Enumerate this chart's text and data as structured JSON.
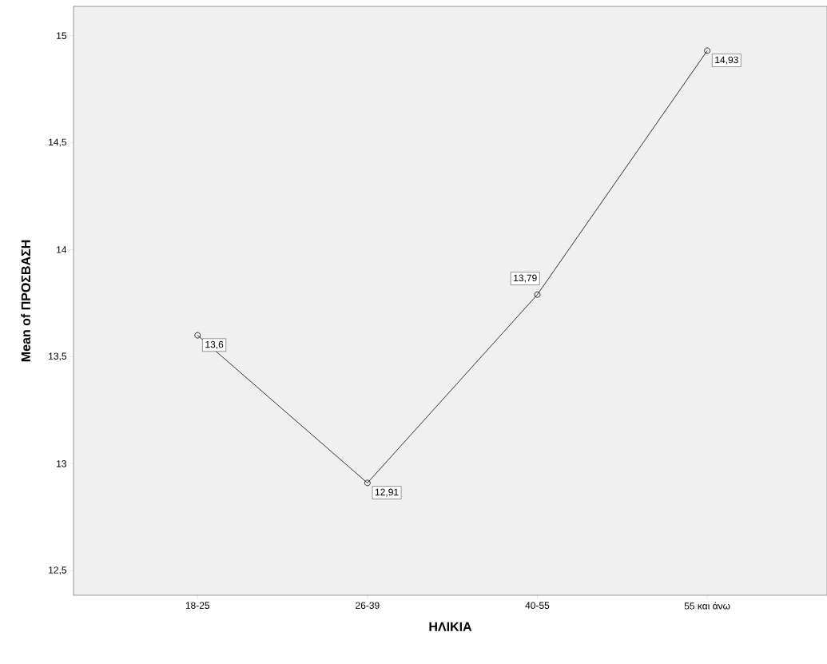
{
  "chart_data": {
    "type": "line",
    "xlabel": "ΗΛΙΚΙΑ",
    "ylabel": "Mean of ΠΡΟΣΒΑΣΗ",
    "categories": [
      "18-25",
      "26-39",
      "40-55",
      "55 και άνω"
    ],
    "series": [
      {
        "color": "#000000",
        "values": [
          13.6,
          12.91,
          13.79,
          14.93
        ],
        "value_labels": [
          "13,6",
          "12,91",
          "13,79",
          "14,93"
        ]
      }
    ],
    "ylim": [
      12.385,
      15.137
    ],
    "yticks": [
      {
        "value": 12.5,
        "label": "12,5"
      },
      13,
      {
        "value": 13.5,
        "label": "13,5"
      },
      14,
      {
        "value": 14.5,
        "label": "14,5"
      },
      15
    ],
    "marker": "circle",
    "line_style": "solid",
    "grid": false
  }
}
